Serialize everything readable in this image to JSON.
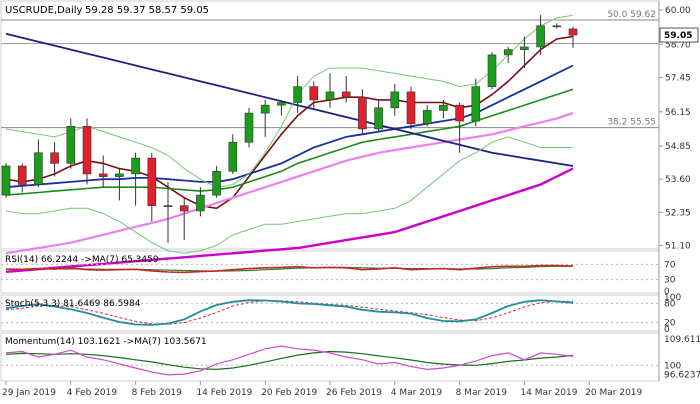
{
  "chart_data": {
    "type": "candlestick",
    "header": {
      "symbol": "USCRUDE,Daily",
      "ohlc": "59.28 59.37 58.57 59.05"
    },
    "price_axis": {
      "ylim": [
        51.0,
        60.3
      ],
      "ticks": [
        "60.00",
        "58.70",
        "57.45",
        "56.15",
        "54.85",
        "53.60",
        "52.35",
        "51.10"
      ]
    },
    "current_price": "59.05",
    "date_labels": [
      "29 Jan 2019",
      "4 Feb 2019",
      "8 Feb 2019",
      "14 Feb 2019",
      "20 Feb 2019",
      "26 Feb 2019",
      "4 Mar 2019",
      "8 Mar 2019",
      "14 Mar 2019",
      "20 Mar 2019"
    ],
    "date_label_index": [
      0,
      4,
      8,
      12,
      16,
      20,
      24,
      28,
      32,
      36
    ],
    "fib_levels": [
      {
        "label": "50.0 59.62",
        "value": 59.62
      },
      {
        "label": "38.2 55.55",
        "value": 55.55
      }
    ],
    "horizontal_level": 58.73,
    "candles": [
      [
        53.0,
        54.2,
        52.9,
        54.1
      ],
      [
        54.1,
        54.2,
        53.1,
        53.4
      ],
      [
        53.4,
        55.1,
        53.3,
        54.6
      ],
      [
        54.6,
        55.0,
        53.7,
        54.2
      ],
      [
        54.2,
        55.9,
        54.0,
        55.6
      ],
      [
        55.6,
        55.9,
        53.4,
        53.8
      ],
      [
        53.8,
        54.5,
        53.3,
        53.7
      ],
      [
        53.7,
        54.0,
        52.8,
        53.8
      ],
      [
        53.8,
        54.6,
        52.6,
        54.4
      ],
      [
        54.4,
        54.6,
        52.0,
        52.6
      ],
      [
        52.6,
        53.5,
        51.2,
        52.6
      ],
      [
        52.6,
        52.9,
        51.3,
        52.4
      ],
      [
        52.4,
        53.3,
        52.2,
        53.0
      ],
      [
        53.0,
        54.1,
        52.9,
        53.9
      ],
      [
        53.9,
        55.3,
        53.8,
        55.0
      ],
      [
        55.0,
        56.3,
        54.8,
        56.1
      ],
      [
        56.1,
        56.6,
        55.2,
        56.4
      ],
      [
        56.4,
        56.6,
        56.0,
        56.5
      ],
      [
        56.5,
        57.5,
        56.1,
        57.1
      ],
      [
        57.1,
        57.3,
        56.3,
        56.6
      ],
      [
        56.6,
        57.6,
        56.3,
        56.9
      ],
      [
        56.9,
        57.5,
        56.5,
        56.7
      ],
      [
        56.7,
        57.0,
        55.3,
        55.5
      ],
      [
        55.5,
        56.6,
        55.4,
        56.3
      ],
      [
        56.3,
        57.2,
        56.0,
        56.9
      ],
      [
        56.9,
        57.1,
        55.5,
        55.7
      ],
      [
        55.7,
        56.4,
        55.6,
        56.2
      ],
      [
        56.2,
        56.6,
        55.9,
        56.4
      ],
      [
        56.4,
        56.5,
        54.6,
        55.8
      ],
      [
        55.8,
        57.4,
        55.6,
        57.1
      ],
      [
        57.1,
        58.4,
        57.0,
        58.3
      ],
      [
        58.3,
        58.6,
        58.0,
        58.5
      ],
      [
        58.5,
        59.0,
        57.8,
        58.6
      ],
      [
        58.6,
        59.8,
        58.3,
        59.4
      ],
      [
        59.4,
        59.5,
        59.3,
        59.4
      ],
      [
        59.28,
        59.37,
        58.57,
        59.05
      ]
    ],
    "ma_series": [
      {
        "color": "#7a1010",
        "width": 1.6,
        "values": [
          53.6,
          53.5,
          53.6,
          53.8,
          54.1,
          54.3,
          54.2,
          54.0,
          53.9,
          53.7,
          53.3,
          52.9,
          52.6,
          52.5,
          52.9,
          53.7,
          54.5,
          55.3,
          56.0,
          56.5,
          56.6,
          56.7,
          56.7,
          56.6,
          56.6,
          56.5,
          56.5,
          56.5,
          56.3,
          56.4,
          56.8,
          57.3,
          57.9,
          58.5,
          58.9,
          59.0
        ]
      },
      {
        "color": "#1b2fa0",
        "width": 1.8,
        "values": [
          53.3,
          53.35,
          53.4,
          53.45,
          53.5,
          53.55,
          53.6,
          53.6,
          53.65,
          53.65,
          53.6,
          53.55,
          53.5,
          53.5,
          53.6,
          53.8,
          54.0,
          54.2,
          54.5,
          54.8,
          55.0,
          55.2,
          55.3,
          55.4,
          55.5,
          55.6,
          55.7,
          55.8,
          55.9,
          56.1,
          56.4,
          56.7,
          57.0,
          57.3,
          57.6,
          57.9
        ]
      },
      {
        "color": "#1e8a1e",
        "width": 1.6,
        "values": [
          53.0,
          53.05,
          53.1,
          53.15,
          53.2,
          53.25,
          53.3,
          53.3,
          53.3,
          53.3,
          53.25,
          53.2,
          53.15,
          53.2,
          53.3,
          53.5,
          53.7,
          53.9,
          54.2,
          54.4,
          54.6,
          54.8,
          55.0,
          55.1,
          55.2,
          55.3,
          55.4,
          55.5,
          55.6,
          55.8,
          56.0,
          56.2,
          56.4,
          56.6,
          56.8,
          57.0
        ]
      },
      {
        "color": "#ee80ee",
        "width": 2.2,
        "values": [
          50.8,
          50.9,
          51.0,
          51.1,
          51.2,
          51.35,
          51.5,
          51.65,
          51.8,
          51.95,
          52.1,
          52.3,
          52.5,
          52.7,
          52.9,
          53.1,
          53.3,
          53.5,
          53.7,
          53.9,
          54.1,
          54.3,
          54.45,
          54.6,
          54.7,
          54.8,
          54.9,
          55.0,
          55.1,
          55.2,
          55.3,
          55.45,
          55.6,
          55.75,
          55.9,
          56.1
        ]
      },
      {
        "color": "#cc00cc",
        "width": 2.4,
        "values": [
          50.1,
          50.15,
          50.2,
          50.25,
          50.3,
          50.35,
          50.4,
          50.45,
          50.5,
          50.55,
          50.6,
          50.65,
          50.7,
          50.75,
          50.8,
          50.85,
          50.9,
          50.95,
          51.0,
          51.1,
          51.2,
          51.3,
          51.4,
          51.5,
          51.6,
          51.8,
          52.0,
          52.2,
          52.4,
          52.6,
          52.8,
          53.0,
          53.2,
          53.4,
          53.7,
          54.0
        ]
      },
      {
        "color": "#1a237e",
        "width": 1.8,
        "values": [
          59.1,
          58.95,
          58.8,
          58.65,
          58.5,
          58.35,
          58.2,
          58.05,
          57.9,
          57.75,
          57.6,
          57.45,
          57.3,
          57.15,
          57.0,
          56.85,
          56.7,
          56.55,
          56.4,
          56.25,
          56.1,
          55.95,
          55.8,
          55.65,
          55.5,
          55.35,
          55.2,
          55.05,
          54.9,
          54.75,
          54.6,
          54.5,
          54.4,
          54.3,
          54.2,
          54.1
        ]
      },
      {
        "color": "#77c777",
        "width": 1.0,
        "values": [
          55.5,
          55.4,
          55.3,
          55.2,
          55.4,
          55.6,
          55.4,
          55.2,
          55.0,
          54.8,
          54.5,
          54.0,
          53.6,
          53.3,
          53.4,
          53.8,
          54.6,
          55.6,
          56.8,
          57.5,
          57.8,
          57.8,
          57.8,
          57.7,
          57.6,
          57.5,
          57.4,
          57.3,
          57.1,
          57.2,
          57.7,
          58.3,
          58.9,
          59.4,
          59.7,
          59.8
        ]
      },
      {
        "color": "#77c777",
        "width": 1.0,
        "values": [
          52.4,
          52.3,
          52.3,
          52.4,
          52.5,
          52.5,
          52.3,
          52.0,
          51.6,
          51.2,
          50.9,
          50.8,
          50.9,
          51.1,
          51.5,
          51.7,
          51.9,
          51.9,
          52.0,
          52.1,
          52.2,
          52.3,
          52.3,
          52.4,
          52.5,
          52.8,
          53.3,
          53.8,
          54.3,
          54.6,
          55.0,
          55.2,
          55.0,
          54.8,
          54.8,
          54.8
        ]
      }
    ],
    "rsi": {
      "label": "RSI(14) 66.2244 ->MA(7) 65.3459",
      "ticks": [
        "70",
        "30",
        "0"
      ],
      "tick_values": [
        70,
        30,
        0
      ],
      "range": [
        0,
        100
      ],
      "rsi_values": [
        58,
        57,
        59,
        58,
        61,
        56,
        55,
        56,
        57,
        53,
        50,
        49,
        51,
        53,
        56,
        59,
        61,
        62,
        64,
        61,
        62,
        61,
        56,
        58,
        61,
        56,
        58,
        59,
        56,
        60,
        64,
        65,
        65,
        67,
        67,
        66
      ],
      "ma_values": [
        57,
        57,
        58,
        58,
        58,
        58,
        57,
        57,
        57,
        56,
        55,
        54,
        53,
        52,
        53,
        54,
        56,
        58,
        60,
        61,
        62,
        62,
        61,
        60,
        60,
        59,
        59,
        59,
        58,
        58,
        59,
        61,
        62,
        64,
        65,
        65
      ]
    },
    "stoch": {
      "label": "Stoch(5,3,3) 81.6469 86.5984",
      "ticks": [
        "100",
        "80",
        "20",
        "0"
      ],
      "tick_values": [
        100,
        80,
        20,
        0
      ],
      "range": [
        0,
        100
      ],
      "k_values": [
        65,
        72,
        78,
        70,
        62,
        50,
        35,
        22,
        14,
        13,
        17,
        30,
        55,
        75,
        85,
        90,
        89,
        86,
        80,
        78,
        74,
        70,
        60,
        54,
        52,
        48,
        34,
        25,
        24,
        30,
        50,
        72,
        85,
        90,
        86,
        82
      ],
      "d_values": [
        60,
        65,
        72,
        73,
        70,
        60,
        49,
        36,
        24,
        16,
        15,
        20,
        34,
        52,
        72,
        83,
        88,
        88,
        85,
        81,
        77,
        74,
        68,
        62,
        56,
        51,
        45,
        36,
        28,
        26,
        35,
        51,
        69,
        82,
        87,
        86
      ]
    },
    "momentum": {
      "label": "Momentum(14) 103.1621 ->MA(7) 103.5671",
      "ticks": [
        "109.6114",
        "100",
        "96.6237"
      ],
      "tick_values": [
        109.6114,
        100,
        96.6237
      ],
      "range": [
        95.0,
        111.0
      ],
      "mom_values": [
        104.5,
        105.0,
        103.0,
        104.0,
        105.5,
        103.0,
        102.0,
        100.5,
        99.0,
        97.5,
        96.5,
        96.8,
        98.0,
        100.5,
        102.0,
        104.0,
        106.0,
        107.0,
        106.0,
        105.5,
        104.5,
        103.0,
        102.0,
        100.5,
        101.0,
        99.5,
        98.5,
        99.0,
        100.0,
        101.5,
        103.5,
        104.5,
        102.0,
        104.5,
        104.0,
        103.2
      ],
      "ma_values": [
        104.0,
        104.3,
        104.2,
        104.0,
        104.2,
        104.0,
        103.5,
        102.8,
        102.0,
        101.2,
        100.2,
        99.3,
        98.7,
        98.5,
        99.0,
        100.0,
        101.2,
        102.5,
        103.7,
        104.5,
        105.0,
        104.8,
        104.2,
        103.4,
        102.7,
        101.9,
        101.0,
        100.4,
        100.1,
        100.0,
        100.6,
        101.4,
        101.9,
        102.6,
        103.0,
        103.6
      ]
    }
  }
}
